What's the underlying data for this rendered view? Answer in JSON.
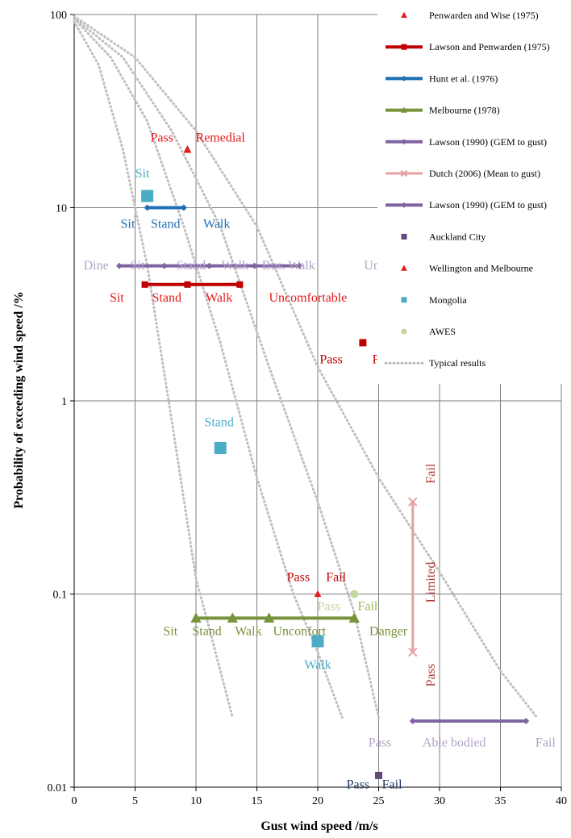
{
  "chart_data": {
    "type": "scatter",
    "title": "",
    "xlabel": "Gust wind speed /m/s",
    "ylabel": "Probability  of exceeding wind  speed /%",
    "xlim": [
      0,
      40
    ],
    "ylim": [
      0.01,
      100
    ],
    "yscale": "log",
    "xticks": [
      "0",
      "5",
      "10",
      "15",
      "20",
      "25",
      "30",
      "35",
      "40"
    ],
    "yticks": [
      "0.01",
      "0.1",
      "1",
      "10",
      "100"
    ],
    "grid": true,
    "legend_position": "right",
    "colors": {
      "penwarden": "#e41a1c",
      "lawson1975": "#c00000",
      "hunt": "#1f6fb5",
      "melbourne": "#77933c",
      "lawson1990": "#8064a2",
      "lawson1990_text": "#b3a2c7",
      "dutch": "#e6a0a0",
      "dutch_text": "#b03a3a",
      "auckland": "#604a7b",
      "auckland_text": "#1f3864",
      "mongolia": "#4bacc6",
      "awes": "#c3d69b",
      "awes_text": "#9bbb59",
      "typical": "#bfbfbf",
      "grid": "#7f7f7f"
    },
    "series": [
      {
        "name": "Penwarden and Wise (1975)",
        "marker": "triangle",
        "line": false,
        "x": [
          9.3
        ],
        "y": [
          20
        ]
      },
      {
        "name": "Lawson and Penwarden (1975)",
        "marker": "square",
        "line": true,
        "x": [
          5.8,
          9.3,
          13.6
        ],
        "y": [
          4,
          4,
          4
        ]
      },
      {
        "name": "Hunt et al. (1976)",
        "marker": "diamond",
        "line": true,
        "x": [
          6,
          9
        ],
        "y": [
          10,
          10
        ]
      },
      {
        "name": "Melbourne (1978)",
        "marker": "triangle",
        "line": true,
        "x": [
          10,
          13,
          16,
          23
        ],
        "y": [
          0.075,
          0.075,
          0.075,
          0.075
        ]
      },
      {
        "name": "Lawson (1990) (GEM to gust)",
        "marker": "diamond",
        "line": true,
        "x": [
          3.7,
          7.4,
          11.1,
          14.8,
          18.5
        ],
        "y": [
          5,
          5,
          5,
          5,
          5
        ]
      },
      {
        "name": "Dutch (2006) (Mean to gust)",
        "marker": "x",
        "line": true,
        "x": [
          27.8,
          27.8
        ],
        "y": [
          0.3,
          0.05
        ]
      },
      {
        "name": "Lawson (1990) (GEM to gust)",
        "marker": "diamond",
        "line": true,
        "x": [
          27.8,
          37.1
        ],
        "y": [
          0.022,
          0.022
        ]
      },
      {
        "name": "Auckland City",
        "marker": "square",
        "line": false,
        "x": [
          25
        ],
        "y": [
          0.0115
        ]
      },
      {
        "name": "Wellington and Melbourne",
        "marker": "triangle",
        "line": false,
        "x": [
          20
        ],
        "y": [
          0.1
        ]
      },
      {
        "name": "Mongolia",
        "marker": "square",
        "line": false,
        "x": [
          6,
          12,
          20
        ],
        "y": [
          11.5,
          0.57,
          0.057
        ]
      },
      {
        "name": "",
        "marker": "square",
        "line": false,
        "x": [
          23.7
        ],
        "y": [
          2
        ]
      },
      {
        "name": "AWES",
        "marker": "circle",
        "line": false,
        "x": [
          23
        ],
        "y": [
          0.1
        ]
      },
      {
        "name": "Typical results",
        "marker": "none",
        "line": true,
        "dotted": true,
        "x": [],
        "y": []
      }
    ],
    "typical_curves": [
      {
        "x": [
          0,
          2,
          4,
          6,
          8,
          10,
          11,
          12,
          13
        ],
        "y": [
          92,
          55,
          20,
          5,
          0.8,
          0.12,
          0.07,
          0.04,
          0.023
        ]
      },
      {
        "x": [
          0,
          3,
          6,
          9,
          12,
          15,
          18,
          20,
          22
        ],
        "y": [
          95,
          60,
          28,
          8,
          2,
          0.4,
          0.1,
          0.05,
          0.023
        ]
      },
      {
        "x": [
          0,
          4,
          8,
          12,
          16,
          20,
          23,
          25
        ],
        "y": [
          96,
          60,
          25,
          8,
          1.5,
          0.3,
          0.08,
          0.023
        ]
      },
      {
        "x": [
          0,
          5,
          10,
          15,
          20,
          25,
          30,
          35,
          38
        ],
        "y": [
          98,
          60,
          25,
          8,
          1.5,
          0.4,
          0.13,
          0.04,
          0.023
        ]
      }
    ],
    "annotations": [
      {
        "text": "Pass",
        "x": 7.2,
        "y": 23,
        "color": "#e41a1c"
      },
      {
        "text": "Remedial",
        "x": 12,
        "y": 23,
        "color": "#e41a1c"
      },
      {
        "text": "Sit",
        "x": 5.6,
        "y": 15,
        "color": "#4bacc6"
      },
      {
        "text": "Sit",
        "x": 4.4,
        "y": 8.2,
        "color": "#1f6fb5"
      },
      {
        "text": "Stand",
        "x": 7.5,
        "y": 8.2,
        "color": "#1f6fb5"
      },
      {
        "text": "Walk",
        "x": 11.7,
        "y": 8.2,
        "color": "#1f6fb5"
      },
      {
        "text": "Dine",
        "x": 1.8,
        "y": 5,
        "color": "#b3a2c7"
      },
      {
        "text": "Sit",
        "x": 5.2,
        "y": 5,
        "color": "#b3a2c7"
      },
      {
        "text": "Stand",
        "x": 9.6,
        "y": 5,
        "color": "#b3a2c7"
      },
      {
        "text": "Walk",
        "x": 13.2,
        "y": 5,
        "color": "#b3a2c7"
      },
      {
        "text": "Bus. Walk",
        "x": 17.6,
        "y": 5,
        "color": "#b3a2c7"
      },
      {
        "text": "Uncomfortable",
        "x": 27,
        "y": 5,
        "color": "#b3a2c7"
      },
      {
        "text": "Sit",
        "x": 3.5,
        "y": 3.4,
        "color": "#e41a1c"
      },
      {
        "text": "Stand",
        "x": 7.6,
        "y": 3.4,
        "color": "#e41a1c"
      },
      {
        "text": "Walk",
        "x": 11.9,
        "y": 3.4,
        "color": "#e41a1c"
      },
      {
        "text": "Uncomfortable",
        "x": 19.2,
        "y": 3.4,
        "color": "#e41a1c"
      },
      {
        "text": "Pass",
        "x": 21.1,
        "y": 1.63,
        "color": "#c00000"
      },
      {
        "text": "Fail",
        "x": 25.3,
        "y": 1.63,
        "color": "#c00000"
      },
      {
        "text": "Stand",
        "x": 11.9,
        "y": 0.77,
        "color": "#4bacc6"
      },
      {
        "text": "Pass",
        "x": 18.4,
        "y": 0.122,
        "color": "#c00000"
      },
      {
        "text": "Fail",
        "x": 21.5,
        "y": 0.122,
        "color": "#c00000"
      },
      {
        "text": "Pass",
        "x": 20.9,
        "y": 0.086,
        "color": "#c3d69b"
      },
      {
        "text": "Fail",
        "x": 24.1,
        "y": 0.086,
        "color": "#9bbb59"
      },
      {
        "text": "Sit",
        "x": 7.9,
        "y": 0.064,
        "color": "#77933c"
      },
      {
        "text": "Stand",
        "x": 10.9,
        "y": 0.064,
        "color": "#77933c"
      },
      {
        "text": "Walk",
        "x": 14.3,
        "y": 0.064,
        "color": "#77933c"
      },
      {
        "text": "Unconfort",
        "x": 18.5,
        "y": 0.064,
        "color": "#77933c"
      },
      {
        "text": "Danger",
        "x": 25.8,
        "y": 0.064,
        "color": "#77933c"
      },
      {
        "text": "Walk",
        "x": 20,
        "y": 0.043,
        "color": "#4bacc6"
      },
      {
        "text": "Pass",
        "x": 25.1,
        "y": 0.017,
        "color": "#b3a2c7"
      },
      {
        "text": "Able bodied",
        "x": 31.2,
        "y": 0.017,
        "color": "#b3a2c7"
      },
      {
        "text": "Fail",
        "x": 38.7,
        "y": 0.017,
        "color": "#b3a2c7"
      },
      {
        "text": "Pass",
        "x": 23.3,
        "y": 0.0103,
        "color": "#1f3864"
      },
      {
        "text": "Fail",
        "x": 26.1,
        "y": 0.0103,
        "color": "#1f3864"
      },
      {
        "text": "Fail",
        "x": 29.3,
        "y": 0.42,
        "color": "#b03a3a",
        "rotate": -90
      },
      {
        "text": "Limited",
        "x": 29.3,
        "y": 0.115,
        "color": "#b03a3a",
        "rotate": -90
      },
      {
        "text": "Pass",
        "x": 29.3,
        "y": 0.038,
        "color": "#b03a3a",
        "rotate": -90
      }
    ]
  }
}
